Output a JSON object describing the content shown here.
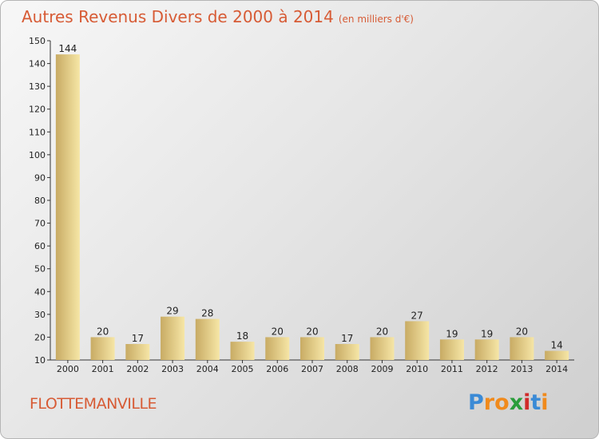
{
  "title": "Autres Revenus Divers de 2000 à 2014",
  "subtitle": "(en milliers d'€)",
  "commune": "FLOTTEMANVILLE",
  "logo": {
    "letters": [
      "P",
      "r",
      "o",
      "x",
      "i",
      "t",
      "i"
    ],
    "colors": [
      "#3a8ad6",
      "#f08a1c",
      "#f08a1c",
      "#2a9d3a",
      "#d02a2a",
      "#3a8ad6",
      "#f08a1c"
    ]
  },
  "colors": {
    "bar_light": "#f6e6a6",
    "bar_dark": "#c8ab64",
    "title": "#d75b35"
  },
  "chart_data": {
    "type": "bar",
    "categories": [
      "2000",
      "2001",
      "2002",
      "2003",
      "2004",
      "2005",
      "2006",
      "2007",
      "2008",
      "2009",
      "2010",
      "2011",
      "2012",
      "2013",
      "2014"
    ],
    "values": [
      144,
      20,
      17,
      29,
      28,
      18,
      20,
      20,
      17,
      20,
      27,
      19,
      19,
      20,
      14
    ],
    "yticks": [
      10,
      20,
      30,
      40,
      50,
      60,
      70,
      80,
      90,
      100,
      110,
      120,
      130,
      140,
      150
    ],
    "ylim": [
      10,
      150
    ],
    "grid": false
  }
}
